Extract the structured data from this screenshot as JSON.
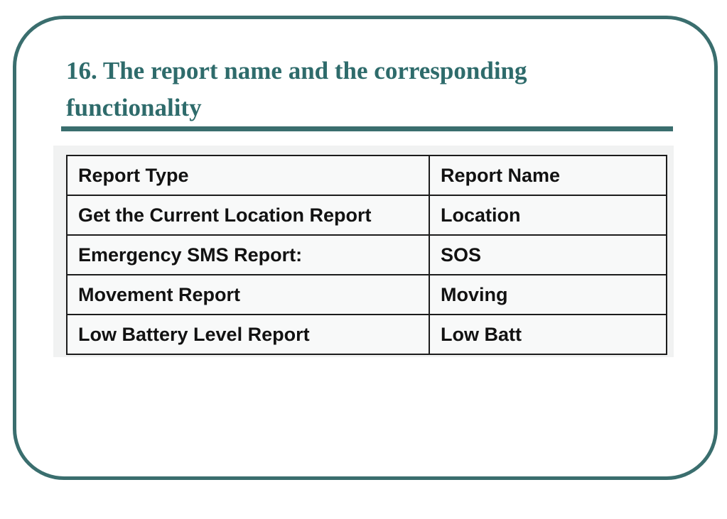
{
  "slide": {
    "title": "16. The report name and the corresponding functionality"
  },
  "report_table": {
    "headers": [
      "Report Type",
      "Report Name"
    ],
    "rows": [
      {
        "report_type": "Get the Current Location Report",
        "report_name": "Location"
      },
      {
        "report_type": "Emergency SMS Report:",
        "report_name": "SOS"
      },
      {
        "report_type": "Movement Report",
        "report_name": "Moving"
      },
      {
        "report_type": "Low Battery Level Report",
        "report_name": "Low Batt"
      }
    ]
  },
  "colors": {
    "accent_teal": "#3a6e6e",
    "title_teal": "#2e6b6b",
    "table_border": "#1c1c1c",
    "panel_background": "#f1f2f2",
    "cell_background": "#f8f9f9"
  }
}
